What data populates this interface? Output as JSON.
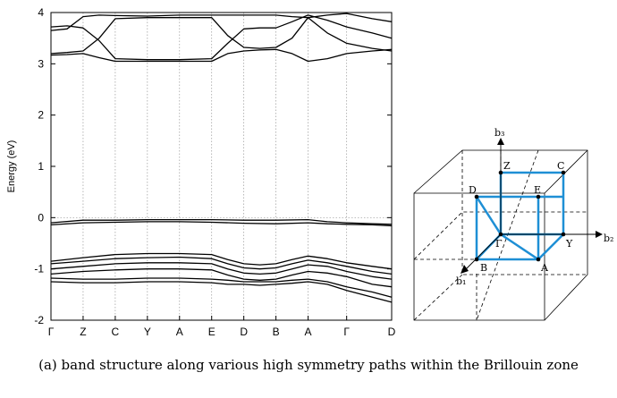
{
  "chart_data": {
    "type": "line",
    "ylabel": "Energy (eV)",
    "ylim": [
      -2,
      4
    ],
    "yticks": [
      "-2",
      "-1",
      "0",
      "1",
      "2",
      "3",
      "4"
    ],
    "kpoints": [
      "Γ",
      "Z",
      "C",
      "Y",
      "A",
      "E",
      "D",
      "B",
      "A",
      "Γ",
      "D"
    ],
    "kpos": [
      0,
      1,
      2,
      3,
      4,
      5,
      6,
      7,
      8,
      9.2,
      10.6
    ],
    "fermi_level": 0,
    "grid": "vertical dotted lines at high-symmetry points",
    "series": [
      {
        "x": [
          0,
          0.5,
          1,
          1.5,
          2,
          3,
          4,
          5,
          5.5,
          6,
          6.5,
          7,
          7.5,
          8,
          8.6,
          9.2,
          10,
          10.6
        ],
        "y": [
          3.17,
          3.18,
          3.2,
          3.12,
          3.05,
          3.05,
          3.05,
          3.05,
          3.2,
          3.25,
          3.27,
          3.28,
          3.2,
          3.05,
          3.1,
          3.2,
          3.25,
          3.28
        ]
      },
      {
        "x": [
          0,
          0.5,
          1,
          1.5,
          2,
          3,
          4,
          5,
          5.5,
          6,
          6.5,
          7,
          7.5,
          8,
          8.6,
          9.2,
          10,
          10.6
        ],
        "y": [
          3.2,
          3.22,
          3.25,
          3.5,
          3.88,
          3.9,
          3.9,
          3.9,
          3.55,
          3.32,
          3.3,
          3.32,
          3.5,
          3.9,
          3.6,
          3.4,
          3.3,
          3.25
        ]
      },
      {
        "x": [
          0,
          0.5,
          1,
          1.5,
          2,
          3,
          4,
          5,
          5.5,
          6,
          6.5,
          7,
          7.5,
          8,
          8.6,
          9.2,
          10,
          10.6
        ],
        "y": [
          3.72,
          3.74,
          3.7,
          3.45,
          3.1,
          3.08,
          3.08,
          3.1,
          3.4,
          3.68,
          3.7,
          3.7,
          3.82,
          3.95,
          3.85,
          3.72,
          3.6,
          3.5
        ]
      },
      {
        "x": [
          0,
          0.5,
          1,
          1.5,
          2,
          3,
          4,
          5,
          6,
          7,
          7.5,
          8,
          8.6,
          9.2,
          10,
          10.6
        ],
        "y": [
          3.65,
          3.68,
          3.92,
          3.95,
          3.94,
          3.93,
          3.95,
          3.95,
          3.95,
          3.95,
          3.92,
          3.9,
          3.95,
          3.98,
          3.88,
          3.82
        ]
      },
      {
        "x": [
          0,
          1,
          2,
          3,
          4,
          5,
          6,
          7,
          8,
          8.6,
          9.2,
          10,
          10.6
        ],
        "y": [
          -0.1,
          -0.05,
          -0.05,
          -0.04,
          -0.04,
          -0.04,
          -0.05,
          -0.05,
          -0.04,
          -0.08,
          -0.1,
          -0.12,
          -0.13
        ]
      },
      {
        "x": [
          0,
          1,
          2,
          3,
          4,
          5,
          6,
          7,
          8,
          8.6,
          9.2,
          10,
          10.6
        ],
        "y": [
          -0.14,
          -0.1,
          -0.09,
          -0.08,
          -0.08,
          -0.09,
          -0.11,
          -0.12,
          -0.1,
          -0.12,
          -0.13,
          -0.14,
          -0.16
        ]
      },
      {
        "x": [
          0,
          1,
          2,
          3,
          4,
          5,
          5.5,
          6,
          6.5,
          7,
          7.5,
          8,
          8.6,
          9.2,
          10,
          10.6
        ],
        "y": [
          -0.85,
          -0.78,
          -0.72,
          -0.7,
          -0.7,
          -0.72,
          -0.82,
          -0.9,
          -0.92,
          -0.9,
          -0.82,
          -0.75,
          -0.8,
          -0.88,
          -0.95,
          -1.0
        ]
      },
      {
        "x": [
          0,
          1,
          2,
          3,
          4,
          5,
          5.5,
          6,
          6.5,
          7,
          7.5,
          8,
          8.6,
          9.2,
          10,
          10.6
        ],
        "y": [
          -0.9,
          -0.85,
          -0.8,
          -0.78,
          -0.77,
          -0.8,
          -0.9,
          -0.98,
          -1.0,
          -0.98,
          -0.9,
          -0.83,
          -0.88,
          -0.95,
          -1.05,
          -1.1
        ]
      },
      {
        "x": [
          0,
          1,
          2,
          3,
          4,
          5,
          5.5,
          6,
          6.5,
          7,
          7.5,
          8,
          8.6,
          9.2,
          10,
          10.6
        ],
        "y": [
          -1.0,
          -0.95,
          -0.9,
          -0.88,
          -0.88,
          -0.9,
          -1.0,
          -1.08,
          -1.1,
          -1.08,
          -1.0,
          -0.92,
          -0.95,
          -1.05,
          -1.15,
          -1.2
        ]
      },
      {
        "x": [
          0,
          1,
          2,
          3,
          4,
          5,
          5.5,
          6,
          6.5,
          7,
          7.5,
          8,
          8.6,
          9.2,
          10,
          10.6
        ],
        "y": [
          -1.1,
          -1.05,
          -1.02,
          -1.0,
          -1.0,
          -1.02,
          -1.12,
          -1.2,
          -1.22,
          -1.2,
          -1.12,
          -1.05,
          -1.08,
          -1.15,
          -1.3,
          -1.35
        ]
      },
      {
        "x": [
          0,
          1,
          2,
          3,
          4,
          5,
          5.5,
          6,
          6.5,
          7,
          7.5,
          8,
          8.6,
          9.2,
          10,
          10.6
        ],
        "y": [
          -1.18,
          -1.2,
          -1.2,
          -1.18,
          -1.18,
          -1.2,
          -1.22,
          -1.25,
          -1.25,
          -1.25,
          -1.22,
          -1.2,
          -1.25,
          -1.35,
          -1.45,
          -1.55
        ]
      },
      {
        "x": [
          0,
          1,
          2,
          3,
          4,
          5,
          5.5,
          6,
          6.5,
          7,
          7.5,
          8,
          8.6,
          9.2,
          10,
          10.6
        ],
        "y": [
          -1.25,
          -1.27,
          -1.27,
          -1.25,
          -1.25,
          -1.27,
          -1.3,
          -1.3,
          -1.32,
          -1.3,
          -1.28,
          -1.25,
          -1.3,
          -1.42,
          -1.55,
          -1.65
        ]
      }
    ]
  },
  "bz_labels": {
    "axis_b1": "b₁",
    "axis_b2": "b₂",
    "axis_b3": "b₃",
    "points": [
      "Z",
      "C",
      "D",
      "E",
      "Γ",
      "Y",
      "B",
      "A"
    ]
  },
  "colors": {
    "path": "#1e8fd5",
    "bands": "#000000"
  },
  "caption": "(a) band structure along various high symmetry paths within the Brillouin zone"
}
